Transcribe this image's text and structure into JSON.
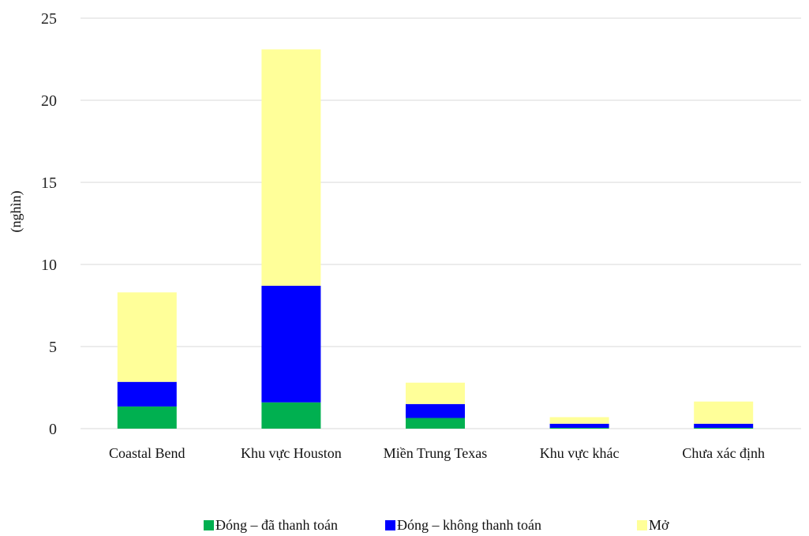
{
  "chart_data": {
    "type": "bar",
    "stacked": true,
    "ylabel": "(nghìn)",
    "xlabel": "",
    "ylim": [
      0,
      25
    ],
    "yticks": [
      0,
      5,
      10,
      15,
      20,
      25
    ],
    "grid": true,
    "legend_position": "bottom",
    "categories": [
      "Coastal Bend",
      "Khu vực Houston",
      "Miền Trung Texas",
      "Khu vực khác",
      "Chưa xác định"
    ],
    "series": [
      {
        "name": "Đóng – đã thanh toán",
        "color": "#00b050",
        "values": [
          1.35,
          1.6,
          0.65,
          0.05,
          0.05
        ]
      },
      {
        "name": "Đóng – không thanh toán",
        "color": "#0000ff",
        "values": [
          1.5,
          7.1,
          0.85,
          0.25,
          0.25
        ]
      },
      {
        "name": "Mở",
        "color": "#ffff99",
        "values": [
          5.45,
          14.4,
          1.3,
          0.4,
          1.35
        ]
      }
    ]
  }
}
